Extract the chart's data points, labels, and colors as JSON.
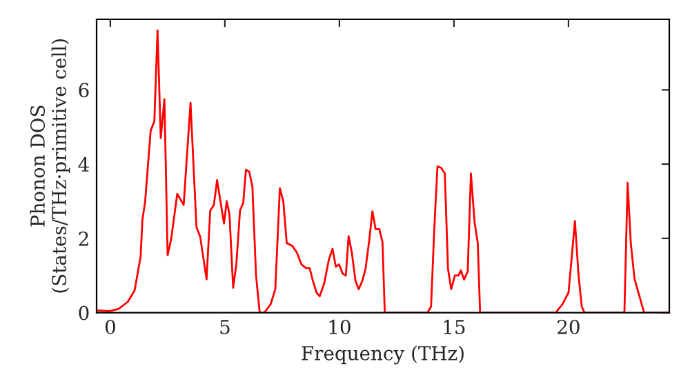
{
  "chart_data": {
    "type": "line",
    "xlabel": "Frequency (THz)",
    "ylabel": "Phonon DOS\n(States/THz·primitive cell)",
    "xlim": [
      -0.6,
      24.4
    ],
    "ylim": [
      0,
      7.9
    ],
    "xticks": [
      0,
      5,
      10,
      15,
      20
    ],
    "yticks": [
      0,
      2,
      4,
      6
    ],
    "grid": false,
    "legend": false,
    "marker": "none",
    "line_style": "solid",
    "series": [
      {
        "color": "#ff0000",
        "x": [
          -0.58,
          -0.04,
          0.36,
          0.76,
          1.06,
          1.32,
          1.4,
          1.52,
          1.76,
          1.92,
          2.06,
          2.2,
          2.36,
          2.5,
          2.66,
          2.92,
          3.2,
          3.5,
          3.76,
          3.92,
          4.2,
          4.36,
          4.52,
          4.66,
          4.96,
          5.08,
          5.2,
          5.36,
          5.5,
          5.66,
          5.8,
          5.92,
          6.06,
          6.2,
          6.36,
          6.52,
          6.72,
          7.0,
          7.2,
          7.4,
          7.55,
          7.7,
          7.94,
          8.14,
          8.34,
          8.54,
          8.7,
          8.84,
          9.0,
          9.14,
          9.34,
          9.54,
          9.7,
          9.84,
          9.98,
          10.14,
          10.28,
          10.4,
          10.54,
          10.7,
          10.84,
          11.0,
          11.14,
          11.3,
          11.44,
          11.58,
          11.74,
          11.88,
          11.98,
          13.84,
          14.0,
          14.14,
          14.28,
          14.44,
          14.6,
          14.74,
          14.88,
          15.04,
          15.2,
          15.3,
          15.44,
          15.6,
          15.74,
          15.9,
          16.04,
          16.14,
          19.44,
          19.74,
          20.0,
          20.14,
          20.28,
          20.44,
          20.58,
          20.7,
          22.44,
          22.58,
          22.72,
          22.88,
          23.3,
          24.34
        ],
        "values": [
          0.06,
          0.04,
          0.1,
          0.29,
          0.6,
          1.5,
          2.5,
          3.0,
          4.9,
          5.15,
          7.6,
          4.7,
          5.75,
          1.55,
          2.0,
          3.2,
          2.9,
          5.65,
          2.3,
          2.05,
          0.9,
          2.75,
          2.9,
          3.57,
          2.4,
          3.0,
          2.65,
          0.67,
          1.3,
          2.75,
          2.95,
          3.85,
          3.8,
          3.4,
          1.0,
          0,
          0,
          0.23,
          0.63,
          3.35,
          3.0,
          1.87,
          1.8,
          1.62,
          1.3,
          1.2,
          1.2,
          0.86,
          0.54,
          0.44,
          0.8,
          1.43,
          1.72,
          1.24,
          1.3,
          1.05,
          1.0,
          2.06,
          1.62,
          0.86,
          0.63,
          0.86,
          1.18,
          1.94,
          2.73,
          2.25,
          2.25,
          1.9,
          0,
          0,
          0.16,
          2.25,
          3.94,
          3.9,
          3.75,
          1.18,
          0.63,
          1.0,
          1.0,
          1.14,
          0.89,
          1.11,
          3.75,
          2.44,
          1.87,
          0,
          0,
          0.23,
          0.54,
          1.49,
          2.47,
          0.99,
          0.16,
          0,
          0,
          3.5,
          1.87,
          0.92,
          0,
          0
        ]
      }
    ]
  }
}
